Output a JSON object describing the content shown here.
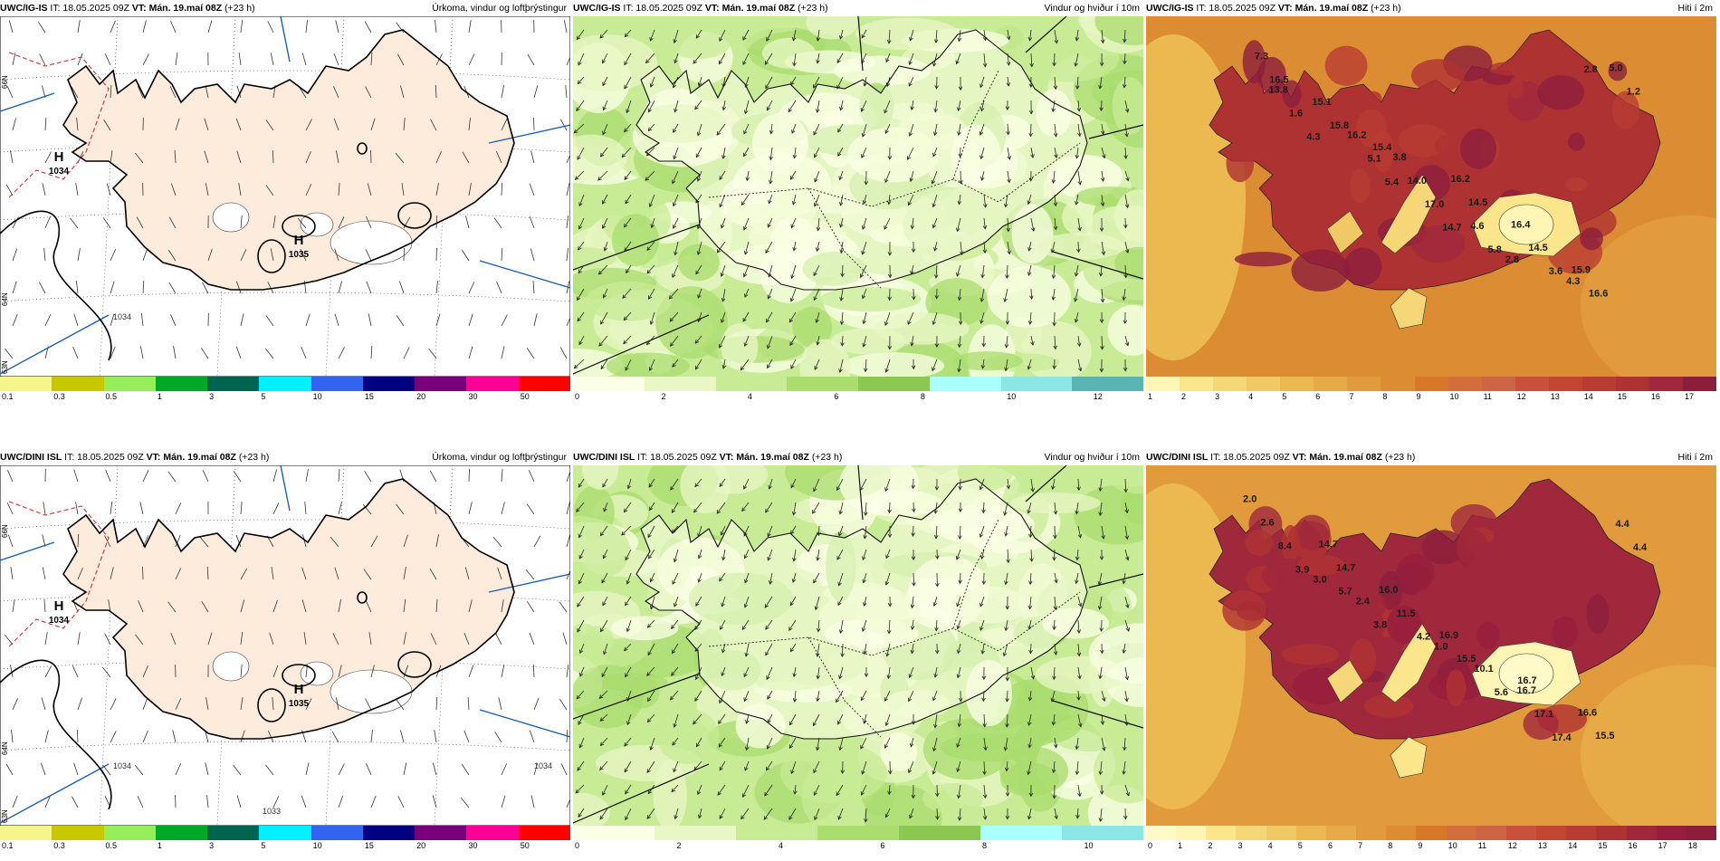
{
  "panels": [
    {
      "id": "p1",
      "type": "precip",
      "header": {
        "model": "UWC/IG-IS",
        "it": "IT: 18.05.2025 09Z",
        "vt_label": "VT:",
        "vt": "Mán. 19.maí 08Z",
        "step": "(+23 h)",
        "title": "Úrkoma, vindur og loftþrýstingur"
      },
      "colorbar": {
        "colors": [
          "#f5f58c",
          "#c8c800",
          "#96ef5a",
          "#00a828",
          "#006450",
          "#00f0ff",
          "#3264f0",
          "#000080",
          "#780078",
          "#ff0096",
          "#ff0000"
        ],
        "labels": [
          "0.1",
          "0.3",
          "0.5",
          "1",
          "3",
          "5",
          "10",
          "15",
          "20",
          "30",
          "50"
        ]
      },
      "pressure_centers": [
        {
          "letter": "H",
          "value": "1034"
        },
        {
          "letter": "H",
          "value": "1035"
        }
      ],
      "lat_labels": [
        "66N",
        "64N",
        "63N"
      ],
      "contour_labels": [
        "1034"
      ]
    },
    {
      "id": "p2",
      "type": "wind",
      "header": {
        "model": "UWC/IG-IS",
        "it": "IT: 18.05.2025 09Z",
        "vt_label": "VT:",
        "vt": "Mán. 19.maí 08Z",
        "step": "(+23 h)",
        "title": "Vindur og hviður í 10m"
      },
      "colorbar": {
        "colors": [
          "#fbffe6",
          "#e8f7c4",
          "#c8eb96",
          "#aadc6e",
          "#8cc850",
          "#aaffff",
          "#8ce6e6",
          "#5ab4b4"
        ],
        "labels": [
          "0",
          "2",
          "4",
          "6",
          "8",
          "10",
          "12"
        ]
      }
    },
    {
      "id": "p3",
      "type": "temp",
      "header": {
        "model": "UWC/IG-IS",
        "it": "IT: 18.05.2025 09Z",
        "vt_label": "VT:",
        "vt": "Mán. 19.maí 08Z",
        "step": "(+23 h)",
        "title": "Hiti í 2m"
      },
      "colorbar": {
        "colors": [
          "#fff5b4",
          "#fbe68c",
          "#f5d778",
          "#f0c864",
          "#ebb950",
          "#e6aa46",
          "#e19b3c",
          "#dc8c32",
          "#d77828",
          "#d26e3c",
          "#cd6446",
          "#c8503c",
          "#c34632",
          "#b93c32",
          "#af3232",
          "#a0283c",
          "#8c1e3c"
        ],
        "labels": [
          "1",
          "2",
          "3",
          "4",
          "5",
          "6",
          "7",
          "8",
          "9",
          "10",
          "11",
          "12",
          "13",
          "14",
          "15",
          "16",
          "17"
        ]
      },
      "temps": [
        "7.3",
        "15.1",
        "15.4",
        "16.2",
        "16.4",
        "15.9",
        "16.5",
        "15.8",
        "3.8",
        "14.5",
        "14.5",
        "16.6",
        "13.8",
        "16.2",
        "14.0",
        "4.6",
        "3.6",
        "5.0",
        "1.6",
        "5.1",
        "17.0",
        "5.8",
        "4.3",
        "1.2",
        "4.3",
        "5.4",
        "14.7",
        "2.8",
        "2.8"
      ]
    },
    {
      "id": "p4",
      "type": "precip",
      "header": {
        "model": "UWC/DINI ISL",
        "it": "IT: 18.05.2025 09Z",
        "vt_label": "VT:",
        "vt": "Mán. 19.maí 08Z",
        "step": "(+23 h)",
        "title": "Úrkoma, vindur og loftþrýstingur"
      },
      "colorbar": {
        "colors": [
          "#f5f58c",
          "#c8c800",
          "#96ef5a",
          "#00a828",
          "#006450",
          "#00f0ff",
          "#3264f0",
          "#000080",
          "#780078",
          "#ff0096",
          "#ff0000"
        ],
        "labels": [
          "0.1",
          "0.3",
          "0.5",
          "1",
          "3",
          "5",
          "10",
          "15",
          "20",
          "30",
          "50"
        ]
      },
      "pressure_centers": [
        {
          "letter": "H",
          "value": "1034"
        },
        {
          "letter": "H",
          "value": "1035"
        }
      ],
      "lat_labels": [
        "66N",
        "64N",
        "63N"
      ],
      "contour_labels": [
        "1034",
        "1033",
        "1034"
      ]
    },
    {
      "id": "p5",
      "type": "wind",
      "header": {
        "model": "UWC/DINI ISL",
        "it": "IT: 18.05.2025 09Z",
        "vt_label": "VT:",
        "vt": "Mán. 19.maí 08Z",
        "step": "(+23 h)",
        "title": "Vindur og hviður í 10m"
      },
      "colorbar": {
        "colors": [
          "#fbffe6",
          "#e8f7c4",
          "#c8eb96",
          "#aadc6e",
          "#8cc850",
          "#aaffff",
          "#8ce6e6"
        ],
        "labels": [
          "0",
          "2",
          "4",
          "6",
          "8",
          "10"
        ]
      }
    },
    {
      "id": "p6",
      "type": "temp",
      "header": {
        "model": "UWC/DINI ISL",
        "it": "IT: 18.05.2025 09Z",
        "vt_label": "VT:",
        "vt": "Mán. 19.maí 08Z",
        "step": "(+23 h)",
        "title": "Hiti í 2m"
      },
      "colorbar": {
        "colors": [
          "#fffac8",
          "#fff5b4",
          "#fbe68c",
          "#f5d778",
          "#f0c864",
          "#ebb950",
          "#e6aa46",
          "#e19b3c",
          "#dc8c32",
          "#d77828",
          "#d26e3c",
          "#cd6446",
          "#c8503c",
          "#c34632",
          "#b93c32",
          "#af3232",
          "#a0283c",
          "#961e3c",
          "#8c1e3c"
        ],
        "labels": [
          "0",
          "1",
          "2",
          "3",
          "4",
          "5",
          "6",
          "7",
          "8",
          "9",
          "10",
          "11",
          "12",
          "13",
          "14",
          "15",
          "16",
          "17",
          "18"
        ]
      },
      "temps": [
        "2.0",
        "14.7",
        "16.0",
        "16.9",
        "16.7",
        "16.6",
        "2.6",
        "14.7",
        "11.5",
        "15.5",
        "16.7",
        "15.5",
        "8.4",
        "5.7",
        "4.2",
        "10.1",
        "17.1",
        "4.4",
        "3.9",
        "2.4",
        "1.0",
        "5.6",
        "17.4",
        "4.4",
        "3.0",
        "3.8"
      ]
    }
  ]
}
